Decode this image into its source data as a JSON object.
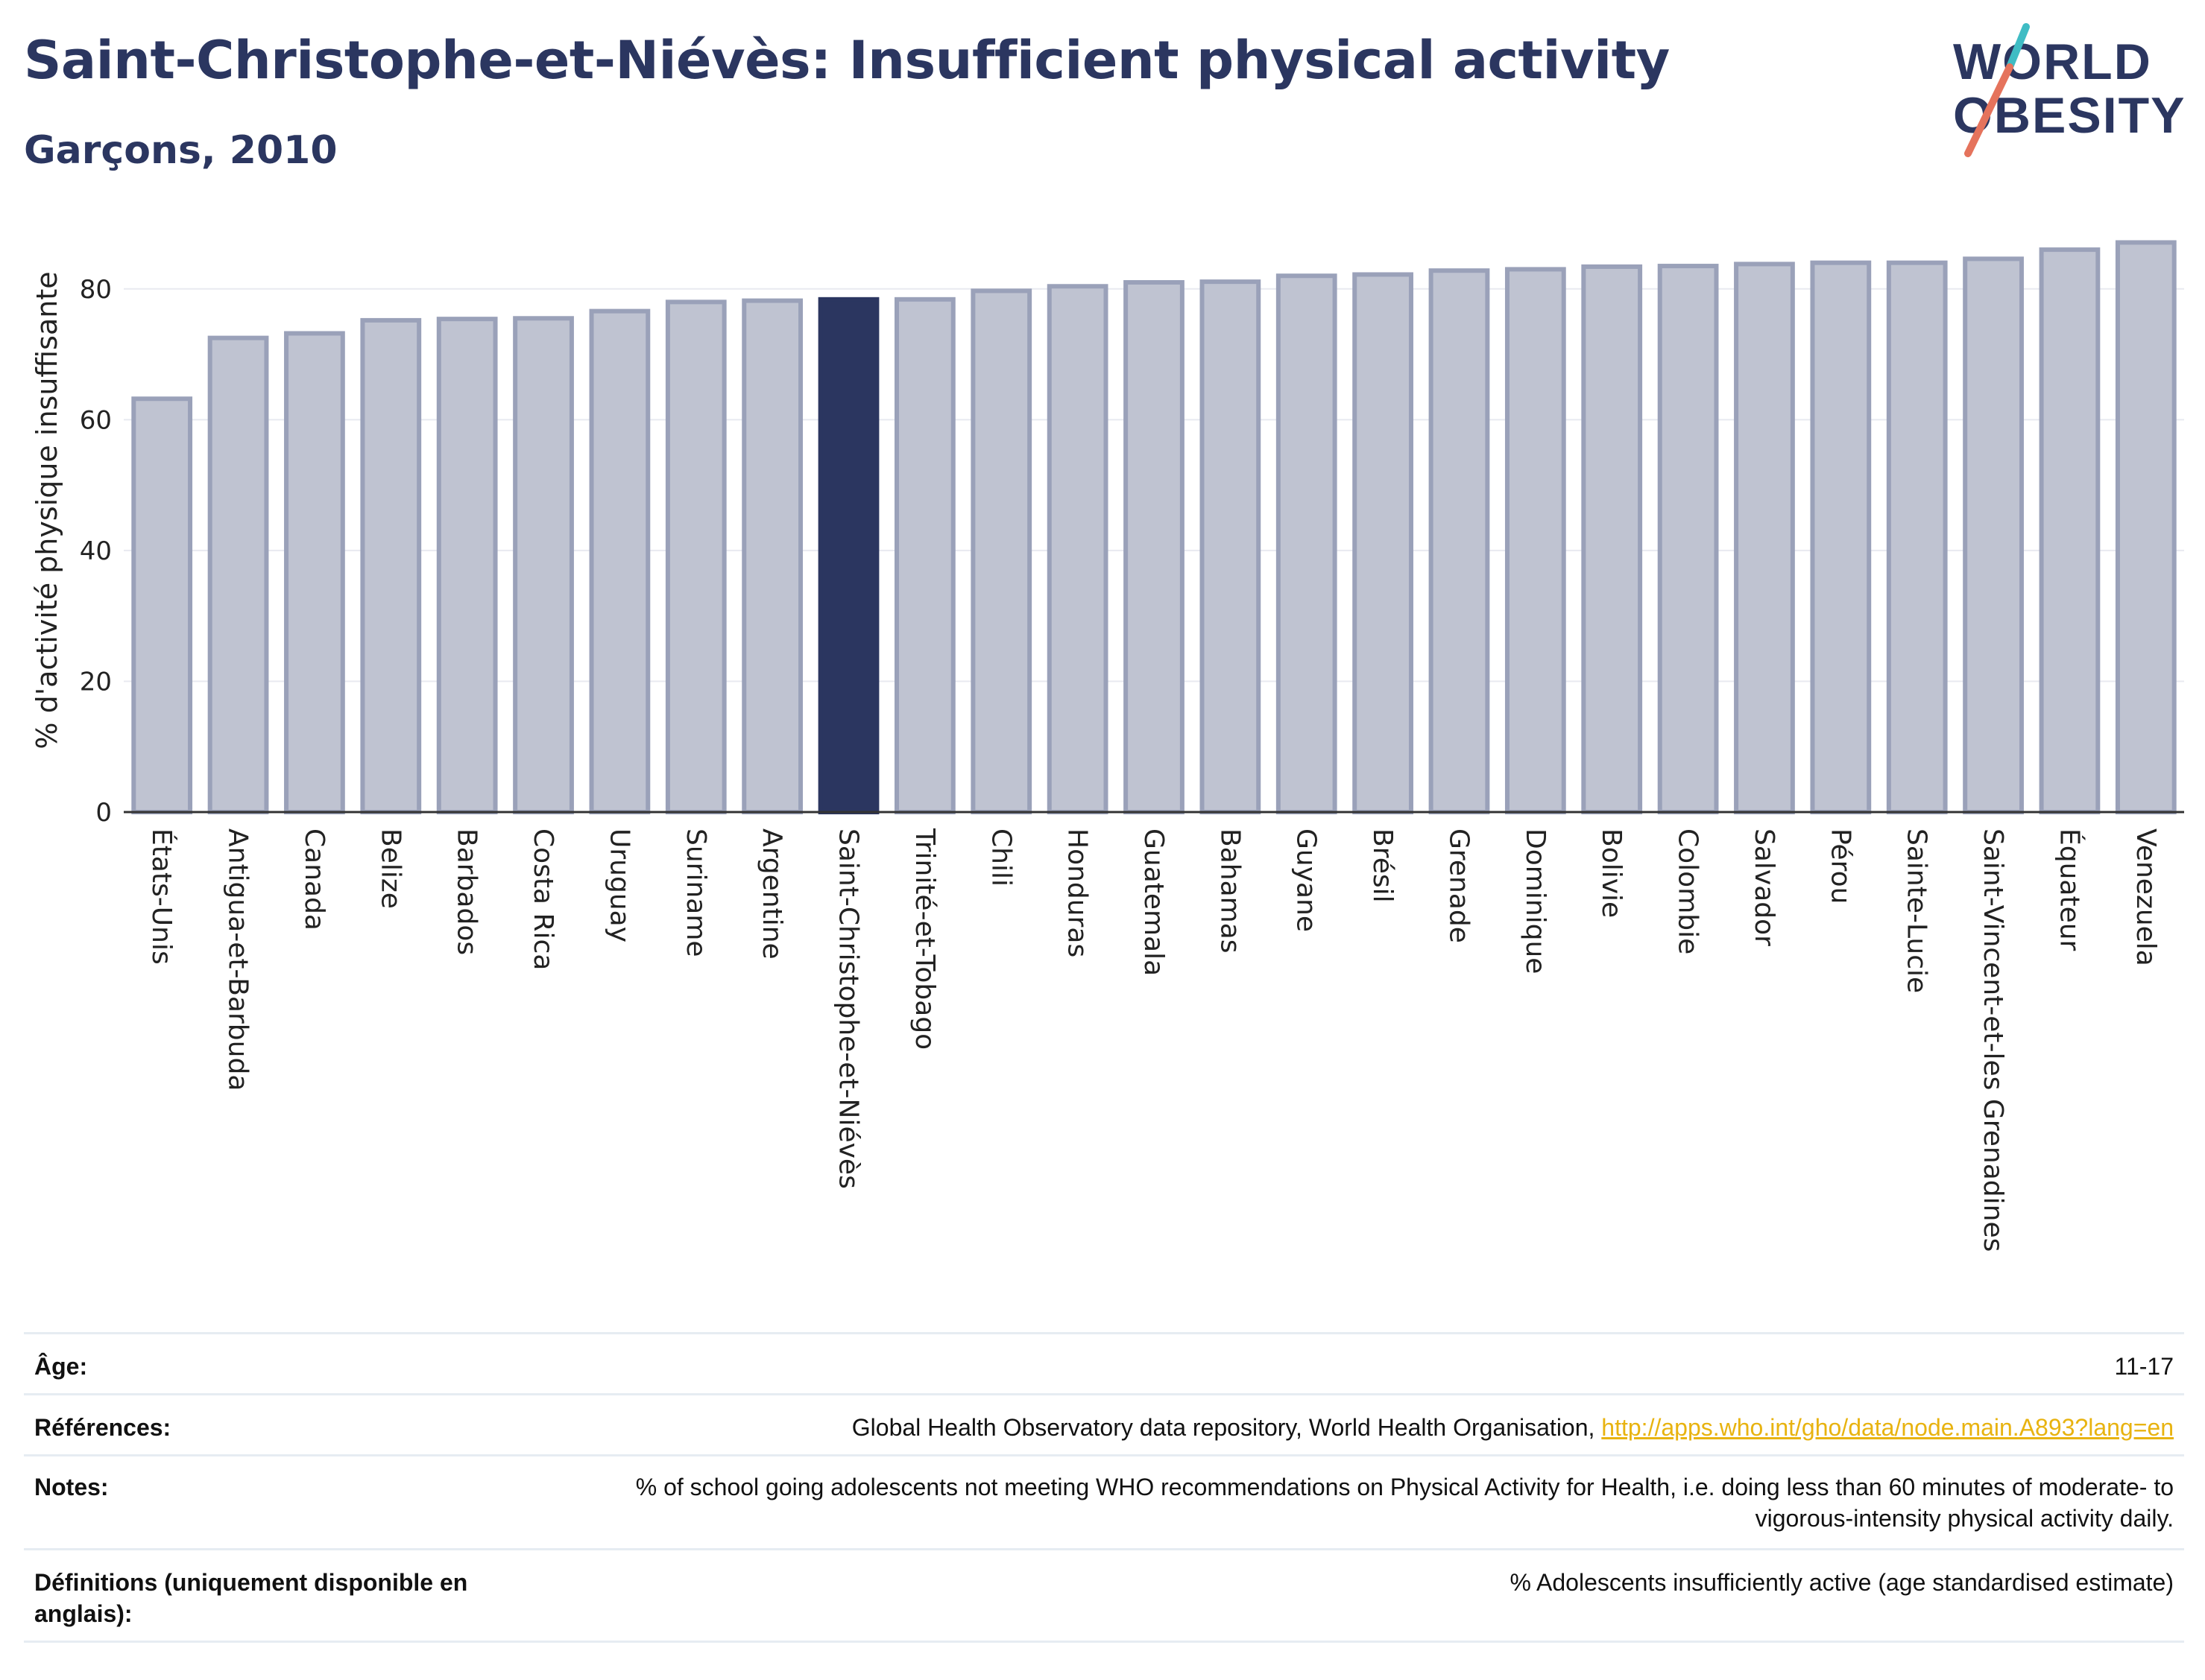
{
  "header": {
    "title": "Saint-Christophe-et-Niévès: Insufficient physical activity",
    "subtitle": "Garçons, 2010"
  },
  "logo": {
    "line1": "WORLD",
    "line2": "OBESITY"
  },
  "colors": {
    "bar": "#bfc3d1",
    "bar_border": "#9aa1b9",
    "highlight": "#2b3660",
    "text": "#2b3660",
    "link": "#e8b310",
    "logo_teal": "#3fbcc4",
    "logo_coral": "#e5735c"
  },
  "chart_data": {
    "type": "bar",
    "title": "Saint-Christophe-et-Niévès: Insufficient physical activity",
    "subtitle": "Garçons, 2010",
    "xlabel": "",
    "ylabel": "% d'activité physique insuffisante",
    "ylim": [
      0,
      90
    ],
    "yticks": [
      0,
      20,
      40,
      60,
      80
    ],
    "grid": true,
    "highlight": "Saint-Christophe-et-Niévès",
    "categories": [
      "États-Unis",
      "Antigua-et-Barbuda",
      "Canada",
      "Belize",
      "Barbados",
      "Costa Rica",
      "Uruguay",
      "Suriname",
      "Argentine",
      "Saint-Christophe-et-Niévès",
      "Trinité-et-Tobago",
      "Chili",
      "Honduras",
      "Guatemala",
      "Bahamas",
      "Guyane",
      "Brésil",
      "Grenade",
      "Dominique",
      "Bolivie",
      "Colombie",
      "Salvador",
      "Pérou",
      "Sainte-Lucie",
      "Saint-Vincent-et-les Grenadines",
      "Équateur",
      "Venezuela"
    ],
    "values": [
      63.2,
      72.5,
      73.2,
      75.2,
      75.4,
      75.5,
      76.6,
      78.0,
      78.2,
      78.4,
      78.4,
      79.7,
      80.4,
      81.0,
      81.1,
      82.0,
      82.2,
      82.8,
      83.0,
      83.4,
      83.5,
      83.8,
      84.0,
      84.0,
      84.6,
      86.0,
      87.1
    ]
  },
  "meta": {
    "age_label": "Âge:",
    "age_value": "11-17",
    "ref_label": "Références:",
    "ref_text": "Global Health Observatory data repository, World Health Organisation, ",
    "ref_link": "http://apps.who.int/gho/data/node.main.A893?lang=en",
    "notes_label": "Notes:",
    "notes_value": "% of school going adolescents not meeting WHO recommendations on Physical Activity for Health, i.e. doing less than 60 minutes of moderate- to vigorous-intensity physical activity daily.",
    "def_label": "Définitions (uniquement disponible en anglais):",
    "def_value": "% Adolescents insufficiently active (age standardised estimate)"
  }
}
